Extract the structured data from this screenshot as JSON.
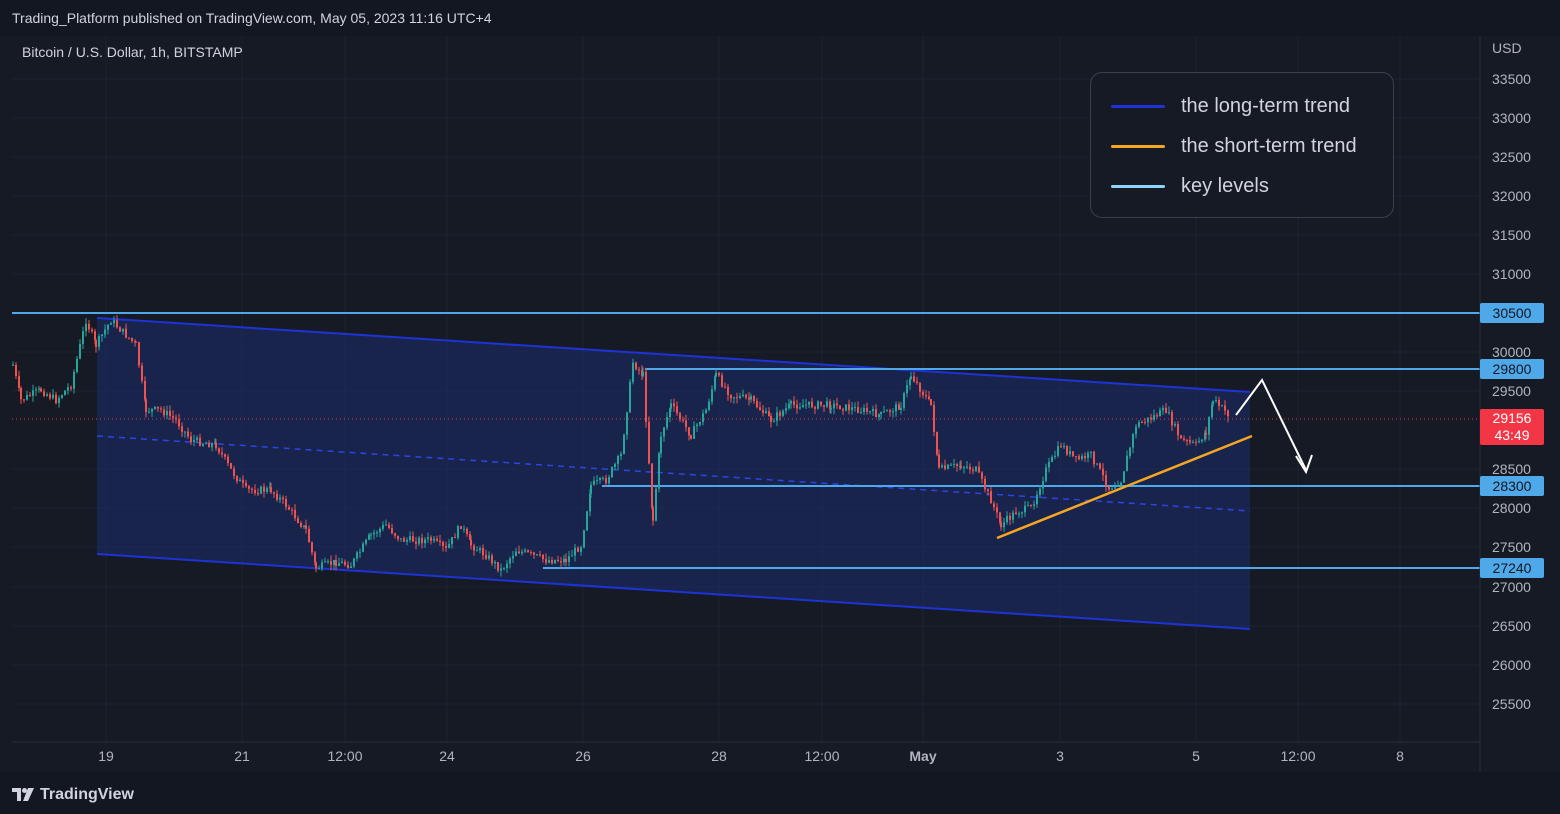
{
  "header": {
    "attribution": "Trading_Platform published on TradingView.com, May 05, 2023 11:16 UTC+4"
  },
  "symbol": {
    "title": "Bitcoin / U.S. Dollar, 1h, BITSTAMP"
  },
  "axis": {
    "currency": "USD",
    "price_ticks": [
      "33500",
      "33000",
      "32500",
      "32000",
      "31500",
      "31000",
      "30000",
      "29500",
      "28500",
      "28000",
      "27500",
      "27000",
      "26500",
      "26000",
      "25500"
    ],
    "time_ticks": [
      "19",
      "21",
      "12:00",
      "24",
      "26",
      "28",
      "12:00",
      "May",
      "3",
      "5",
      "12:00",
      "8"
    ]
  },
  "legend": {
    "items": [
      {
        "label": "the long-term trend",
        "color": "#1e33d6"
      },
      {
        "label": "the short-term trend",
        "color": "#f5a623"
      },
      {
        "label": "key levels",
        "color": "#8fd3ff"
      }
    ]
  },
  "key_levels": [
    {
      "label": "30500",
      "color": "#4fa8e8"
    },
    {
      "label": "29800",
      "color": "#4fa8e8"
    },
    {
      "label": "28300",
      "color": "#4fa8e8"
    },
    {
      "label": "27240",
      "color": "#4fa8e8"
    }
  ],
  "last_price": {
    "price": "29156",
    "countdown": "43:49",
    "color": "#f23645"
  },
  "footer": {
    "brand": "TradingView"
  }
}
